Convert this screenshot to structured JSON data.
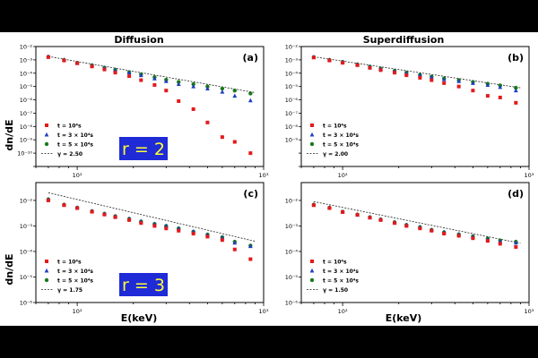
{
  "figure": {
    "column_titles": [
      "Diffusion",
      "Superdiffusion"
    ],
    "ylabel": "dn/dE",
    "xlabel": "E(keV)",
    "row_badges": [
      "r = 2",
      "r = 3"
    ],
    "colors": {
      "t1": "#e31a1c",
      "t3": "#1f3fbf",
      "t5": "#1a7a1a",
      "fit": "#222222",
      "badge_bg": "#1f2bd6",
      "badge_text": "#ffff33"
    }
  },
  "chart_data": [
    {
      "panel": "(a)",
      "type": "scatter",
      "title": "Diffusion",
      "xscale": "log",
      "yscale": "log",
      "xlim": [
        60,
        1000
      ],
      "ylim": [
        1e-10,
        0.1
      ],
      "x": [
        70,
        85,
        100,
        120,
        140,
        160,
        190,
        220,
        260,
        300,
        350,
        420,
        500,
        600,
        700,
        850
      ],
      "series": [
        {
          "name": "t = 10⁴s",
          "marker": "square",
          "color": "#e31a1c",
          "values": [
            0.016,
            0.009,
            0.0055,
            0.0032,
            0.0019,
            0.0011,
            0.0006,
            0.0003,
            0.00013,
            5e-05,
            8e-06,
            2e-06,
            2e-07,
            1.6e-08,
            7e-09,
            1e-09
          ]
        },
        {
          "name": "t = 3 × 10⁴s",
          "marker": "triangle",
          "color": "#1f3fbf",
          "values": [
            0.017,
            0.01,
            0.006,
            0.0038,
            0.0025,
            0.0017,
            0.0011,
            0.0007,
            0.0004,
            0.00025,
            0.00015,
            0.0001,
            7e-05,
            4e-05,
            2e-05,
            9e-06
          ]
        },
        {
          "name": "t = 5 × 10⁴s",
          "marker": "circle",
          "color": "#1a7a1a",
          "values": [
            0.017,
            0.01,
            0.006,
            0.0039,
            0.0026,
            0.0018,
            0.0012,
            0.0008,
            0.0005,
            0.00032,
            0.00022,
            0.00015,
            0.0001,
            7e-05,
            5e-05,
            3e-05
          ]
        }
      ],
      "fit": {
        "name": "γ = 2.50",
        "gamma": 2.5,
        "x": [
          70,
          900
        ],
        "y": [
          0.018,
          3.5e-05
        ]
      },
      "legend": [
        "t = 10⁴s",
        "t = 3 × 10⁴s",
        "t = 5 × 10⁴s",
        "γ = 2.50"
      ],
      "xticks": [
        "10²",
        "10³"
      ],
      "yticks": [
        "10⁻¹⁰",
        "10⁻⁹",
        "10⁻⁸",
        "10⁻⁷",
        "10⁻⁶",
        "10⁻⁵",
        "10⁻⁴",
        "10⁻³",
        "10⁻²"
      ],
      "badge": "r = 2"
    },
    {
      "panel": "(b)",
      "type": "scatter",
      "title": "Superdiffusion",
      "xscale": "log",
      "yscale": "log",
      "xlim": [
        60,
        1000
      ],
      "ylim": [
        1e-10,
        0.1
      ],
      "x": [
        70,
        85,
        100,
        120,
        140,
        160,
        190,
        220,
        260,
        300,
        350,
        420,
        500,
        600,
        700,
        850
      ],
      "series": [
        {
          "name": "t = 10⁴s",
          "marker": "square",
          "color": "#e31a1c",
          "values": [
            0.015,
            0.009,
            0.006,
            0.004,
            0.0025,
            0.0017,
            0.0011,
            0.0007,
            0.00045,
            0.0003,
            0.00018,
            0.0001,
            5e-05,
            2e-05,
            1.5e-05,
            6e-06
          ]
        },
        {
          "name": "t = 3 × 10⁴s",
          "marker": "triangle",
          "color": "#1f3fbf",
          "values": [
            0.016,
            0.01,
            0.007,
            0.0045,
            0.003,
            0.0021,
            0.0014,
            0.001,
            0.0007,
            0.0005,
            0.00035,
            0.00025,
            0.00018,
            0.00013,
            9e-05,
            5e-05
          ]
        },
        {
          "name": "t = 5 × 10⁴s",
          "marker": "circle",
          "color": "#1a7a1a",
          "values": [
            0.016,
            0.01,
            0.007,
            0.0046,
            0.0031,
            0.0022,
            0.0015,
            0.0011,
            0.00075,
            0.00055,
            0.0004,
            0.0003,
            0.00022,
            0.00016,
            0.00012,
            8e-05
          ]
        }
      ],
      "fit": {
        "name": "γ = 2.00",
        "gamma": 2.0,
        "x": [
          70,
          900
        ],
        "y": [
          0.017,
          8e-05
        ]
      },
      "legend": [
        "t = 10⁴s",
        "t = 3 × 10⁴s",
        "t = 5 × 10⁴s",
        "γ = 2.00"
      ],
      "xticks": [
        "10²",
        "10³"
      ],
      "yticks": [
        "10⁻⁹",
        "10⁻⁸",
        "10⁻⁷",
        "10⁻⁶",
        "10⁻⁵",
        "10⁻⁴",
        "10⁻³",
        "10⁻²"
      ]
    },
    {
      "panel": "(c)",
      "type": "scatter",
      "xscale": "log",
      "yscale": "log",
      "xlim": [
        60,
        1000
      ],
      "ylim": [
        1e-06,
        0.05
      ],
      "x": [
        70,
        85,
        100,
        120,
        140,
        160,
        190,
        220,
        260,
        300,
        350,
        420,
        500,
        600,
        700,
        850
      ],
      "series": [
        {
          "name": "t = 10⁴s",
          "marker": "square",
          "color": "#e31a1c",
          "values": [
            0.01,
            0.0065,
            0.005,
            0.0036,
            0.0028,
            0.0022,
            0.0017,
            0.0013,
            0.001,
            0.0008,
            0.00065,
            0.0005,
            0.00038,
            0.00028,
            0.00012,
            5e-05
          ]
        },
        {
          "name": "t = 3 × 10⁴s",
          "marker": "triangle",
          "color": "#1f3fbf",
          "values": [
            0.011,
            0.0068,
            0.0052,
            0.0038,
            0.003,
            0.0024,
            0.0019,
            0.0015,
            0.0012,
            0.001,
            0.0008,
            0.0006,
            0.00045,
            0.00035,
            0.00022,
            0.00016
          ]
        },
        {
          "name": "t = 5 × 10⁴s",
          "marker": "circle",
          "color": "#1a7a1a",
          "values": [
            0.011,
            0.0068,
            0.0052,
            0.0038,
            0.003,
            0.0024,
            0.0019,
            0.0015,
            0.0012,
            0.001,
            0.0008,
            0.0006,
            0.00046,
            0.00036,
            0.00024,
            0.00017
          ]
        }
      ],
      "fit": {
        "name": "γ = 1.75",
        "gamma": 1.75,
        "x": [
          70,
          900
        ],
        "y": [
          0.02,
          0.00025
        ]
      },
      "legend": [
        "t = 10⁴s",
        "t = 3 × 10⁴s",
        "t = 5 × 10⁴s",
        "γ = 1.75"
      ],
      "xticks": [
        "10²",
        "10³"
      ],
      "yticks": [
        "10⁻⁶",
        "10⁻⁵",
        "10⁻⁴",
        "10⁻³",
        "10⁻²"
      ],
      "badge": "r = 3"
    },
    {
      "panel": "(d)",
      "type": "scatter",
      "xscale": "log",
      "yscale": "log",
      "xlim": [
        60,
        1000
      ],
      "ylim": [
        1e-06,
        0.05
      ],
      "x": [
        70,
        85,
        100,
        120,
        140,
        160,
        190,
        220,
        260,
        300,
        350,
        420,
        500,
        600,
        700,
        850
      ],
      "series": [
        {
          "name": "t = 10⁴s",
          "marker": "square",
          "color": "#e31a1c",
          "values": [
            0.0065,
            0.005,
            0.0035,
            0.0027,
            0.0021,
            0.0017,
            0.0013,
            0.001,
            0.0008,
            0.00065,
            0.0005,
            0.00041,
            0.00033,
            0.00026,
            0.0002,
            0.00015
          ]
        },
        {
          "name": "t = 3 × 10⁴s",
          "marker": "triangle",
          "color": "#1f3fbf",
          "values": [
            0.0068,
            0.0052,
            0.0036,
            0.0028,
            0.0022,
            0.0018,
            0.0014,
            0.0011,
            0.0009,
            0.0007,
            0.00056,
            0.00046,
            0.00038,
            0.0003,
            0.00025,
            0.00022
          ]
        },
        {
          "name": "t = 5 × 10⁴s",
          "marker": "circle",
          "color": "#1a7a1a",
          "values": [
            0.0068,
            0.0052,
            0.0036,
            0.0028,
            0.0022,
            0.0018,
            0.0014,
            0.0011,
            0.0009,
            0.0007,
            0.00057,
            0.00047,
            0.00039,
            0.00032,
            0.00027,
            0.00024
          ]
        }
      ],
      "fit": {
        "name": "γ = 1.50",
        "gamma": 1.5,
        "x": [
          70,
          900
        ],
        "y": [
          0.009,
          0.00021
        ]
      },
      "legend": [
        "t = 10⁴s",
        "t = 3 × 10⁴s",
        "t = 5 × 10⁴s",
        "γ = 1.50"
      ],
      "xticks": [
        "10²",
        "10³"
      ],
      "yticks": [
        "10⁻⁶",
        "10⁻⁵",
        "10⁻⁴",
        "10⁻³",
        "10⁻²"
      ]
    }
  ]
}
